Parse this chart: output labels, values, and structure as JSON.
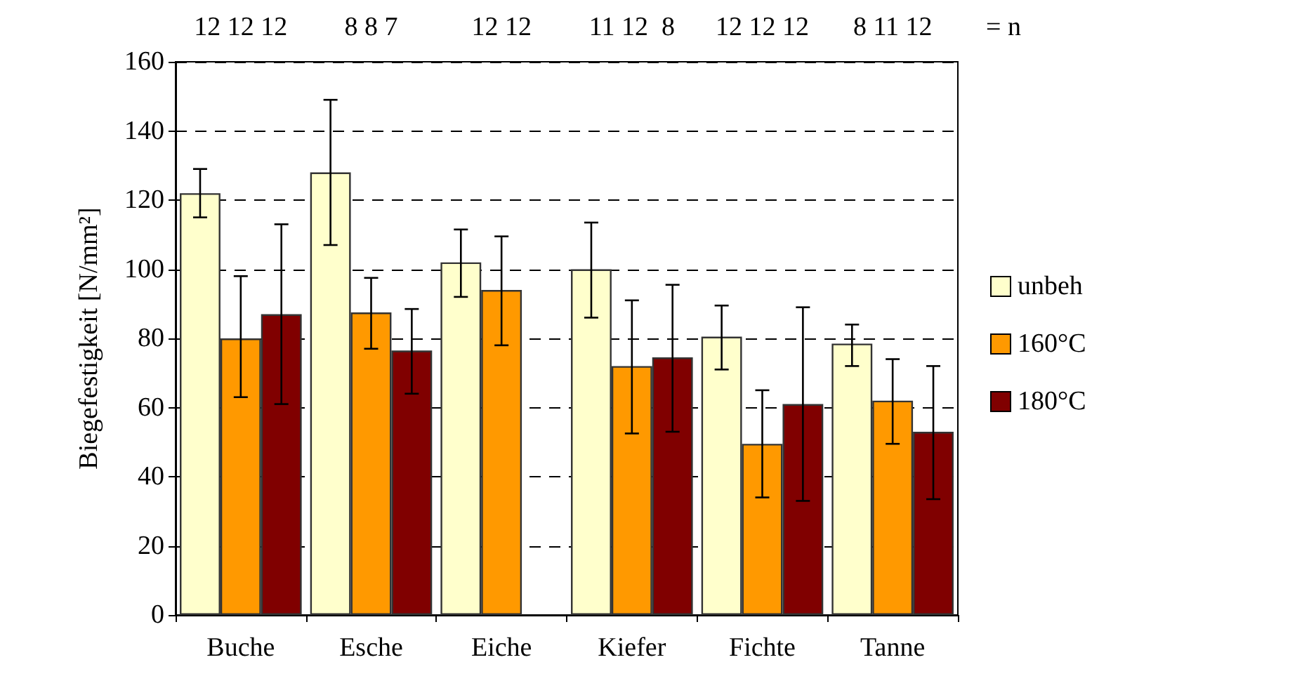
{
  "chart_data": {
    "type": "bar",
    "ylabel": "Biegefestigkeit [N/mm²]",
    "categories": [
      "Buche",
      "Esche",
      "Eiche",
      "Kiefer",
      "Fichte",
      "Tanne"
    ],
    "series": [
      {
        "name": "unbeh",
        "color": "#ffffcc",
        "values": [
          122,
          128,
          102,
          100,
          80.5,
          78.5
        ],
        "errors": [
          [
            115,
            129
          ],
          [
            107,
            149
          ],
          [
            92,
            111.5
          ],
          [
            86,
            113.5
          ],
          [
            71,
            89.5
          ],
          [
            72,
            84
          ]
        ]
      },
      {
        "name": "160°C",
        "color": "#ff9900",
        "values": [
          80,
          87.5,
          94,
          72,
          49.5,
          62
        ],
        "errors": [
          [
            63,
            98
          ],
          [
            77,
            97.5
          ],
          [
            78,
            109.5
          ],
          [
            52.5,
            91
          ],
          [
            34,
            65
          ],
          [
            49.5,
            74
          ]
        ]
      },
      {
        "name": "180°C",
        "color": "#800000",
        "values": [
          87,
          76.5,
          null,
          74.5,
          61,
          53
        ],
        "errors": [
          [
            61,
            113
          ],
          [
            64,
            88.5
          ],
          null,
          [
            53,
            95.5
          ],
          [
            33,
            89
          ],
          [
            33.5,
            72
          ]
        ]
      }
    ],
    "annotations": [
      "12 12 12",
      "8 8 7",
      "12 12",
      "11 12  8",
      "12 12 12",
      "8 11 12",
      "= n"
    ],
    "ylim": [
      0,
      160
    ],
    "yticks": [
      0,
      20,
      40,
      60,
      80,
      100,
      120,
      140,
      160
    ],
    "grid": "y",
    "legend": "right"
  }
}
